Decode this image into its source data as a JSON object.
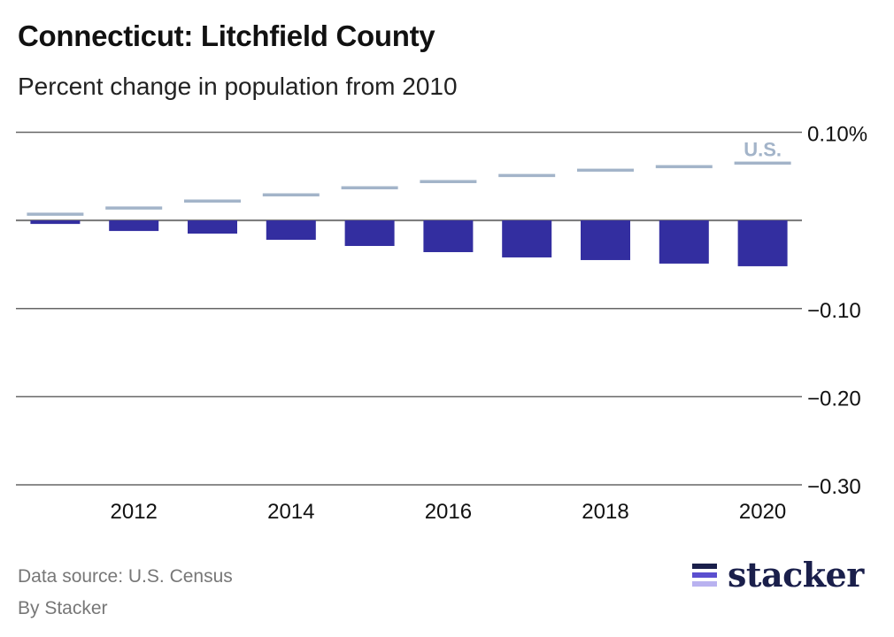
{
  "chart_data": {
    "type": "bar",
    "title": "Connecticut: Litchfield County",
    "subtitle": "Percent change in population from 2010",
    "categories": [
      "2011",
      "2012",
      "2013",
      "2014",
      "2015",
      "2016",
      "2017",
      "2018",
      "2019",
      "2020"
    ],
    "series": [
      {
        "values": [
          -0.004,
          -0.012,
          -0.015,
          -0.022,
          -0.029,
          -0.036,
          -0.042,
          -0.045,
          -0.049,
          -0.052
        ],
        "color": "#332ea0",
        "mark": "bar"
      },
      {
        "name": "U.S.",
        "values": [
          0.007,
          0.014,
          0.022,
          0.029,
          0.037,
          0.044,
          0.051,
          0.057,
          0.061,
          0.065
        ],
        "color": "#a3b4c9",
        "mark": "line-segment"
      }
    ],
    "x_tick_labels": [
      "2012",
      "2014",
      "2016",
      "2018",
      "2020"
    ],
    "y_ticks": [
      0.1,
      0,
      -0.1,
      -0.2,
      -0.3
    ],
    "y_tick_labels": [
      "0.10%",
      "",
      "−0.10",
      "−0.20",
      "−0.30"
    ],
    "ylim": [
      -0.3,
      0.1
    ],
    "grid": true,
    "xlabel": "",
    "ylabel": ""
  },
  "footer": {
    "source": "Data source: U.S. Census",
    "byline": "By Stacker",
    "logo_text": "stacker"
  }
}
